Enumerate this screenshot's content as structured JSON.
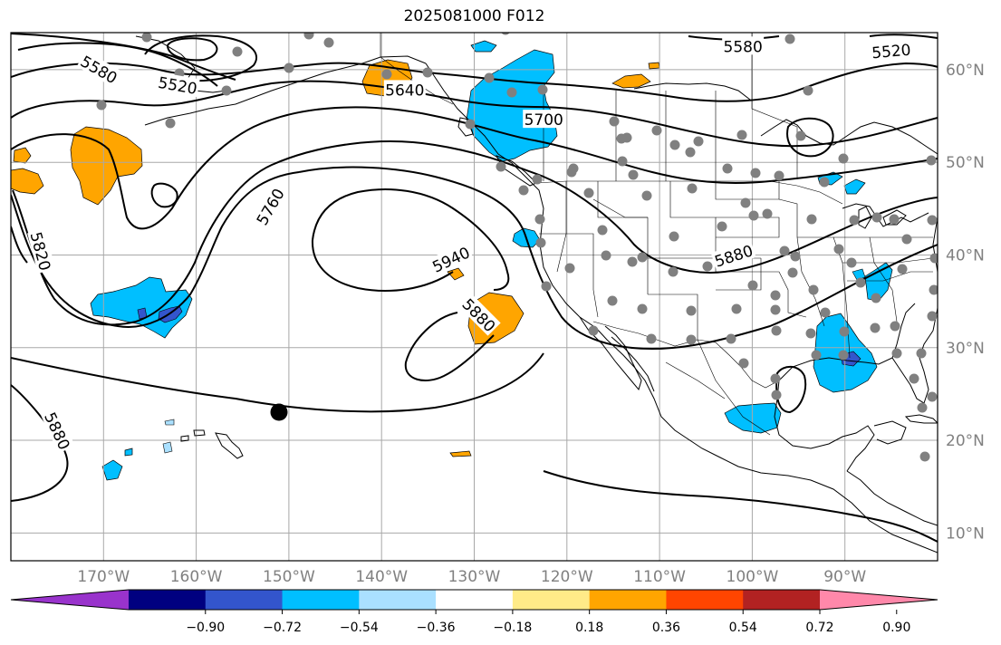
{
  "title": "2025081000 F012",
  "colors": {
    "grid": "#a8a8a8",
    "coast": "#000000",
    "station": "#808080",
    "contour": "#000000"
  },
  "map": {
    "lon_range": [
      -180,
      -80
    ],
    "lat_range": [
      7,
      64
    ],
    "lon_ticks": [
      {
        "value": -170,
        "label": "170°W"
      },
      {
        "value": -160,
        "label": "160°W"
      },
      {
        "value": -150,
        "label": "150°W"
      },
      {
        "value": -140,
        "label": "140°W"
      },
      {
        "value": -130,
        "label": "130°W"
      },
      {
        "value": -120,
        "label": "120°W"
      },
      {
        "value": -110,
        "label": "110°W"
      },
      {
        "value": -100,
        "label": "100°W"
      },
      {
        "value": -90,
        "label": "90°W"
      }
    ],
    "lat_ticks": [
      {
        "value": 10,
        "label": "10°N"
      },
      {
        "value": 20,
        "label": "20°N"
      },
      {
        "value": 30,
        "label": "30°N"
      },
      {
        "value": 40,
        "label": "40°N"
      },
      {
        "value": 50,
        "label": "50°N"
      },
      {
        "value": 60,
        "label": "60°N"
      }
    ]
  },
  "contour_labels": [
    {
      "text": "5580",
      "lon": -170.5,
      "lat": 60.0,
      "rot": 30
    },
    {
      "text": "5520",
      "lon": -162.0,
      "lat": 58.3,
      "rot": 10
    },
    {
      "text": "5640",
      "lon": -137.5,
      "lat": 57.8,
      "rot": 0
    },
    {
      "text": "5700",
      "lon": -122.5,
      "lat": 54.6,
      "rot": 0
    },
    {
      "text": "5580",
      "lon": -101.0,
      "lat": 62.5,
      "rot": 0
    },
    {
      "text": "5520",
      "lon": -85.0,
      "lat": 62.0,
      "rot": -5
    },
    {
      "text": "5760",
      "lon": -152.0,
      "lat": 45.2,
      "rot": -60
    },
    {
      "text": "5820",
      "lon": -176.8,
      "lat": 40.4,
      "rot": 75
    },
    {
      "text": "5940",
      "lon": -132.5,
      "lat": 39.5,
      "rot": -25
    },
    {
      "text": "5880",
      "lon": -102.0,
      "lat": 39.9,
      "rot": -18
    },
    {
      "text": "5880",
      "lon": -129.5,
      "lat": 33.5,
      "rot": 45
    },
    {
      "text": "5880",
      "lon": -175.0,
      "lat": 21.0,
      "rot": 65
    }
  ],
  "colorbar": {
    "colors": [
      "#9933cc",
      "#000080",
      "#3355cc",
      "#00bfff",
      "#aae0ff",
      "#ffffff",
      "#ffeb88",
      "#ffa500",
      "#ff4500",
      "#b22222",
      "#ff88aa"
    ],
    "tick_labels": [
      "−0.90",
      "−0.72",
      "−0.54",
      "−0.36",
      "−0.18",
      "0.18",
      "0.36",
      "0.54",
      "0.72",
      "0.90"
    ]
  }
}
